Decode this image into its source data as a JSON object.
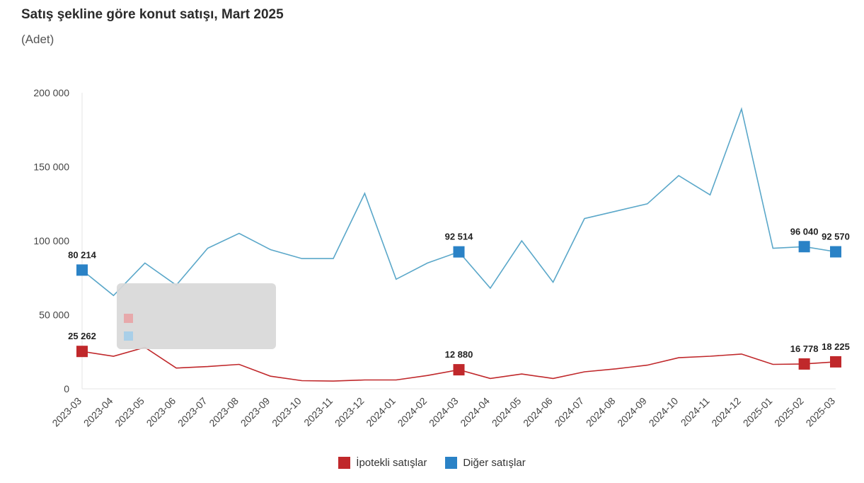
{
  "title": "Satış şekline göre konut satışı, Mart 2025",
  "subtitle": "(Adet)",
  "colors": {
    "ipotekli": "#c0282b",
    "diger": "#2a82c6",
    "diger_line": "#5aa7c9"
  },
  "chart_data": {
    "type": "line",
    "title": "Satış şekline göre konut satışı, Mart 2025",
    "subtitle": "(Adet)",
    "xlabel": "",
    "ylabel": "",
    "ylim": [
      0,
      200000
    ],
    "y_ticks": [
      "0",
      "50 000",
      "100 000",
      "150 000",
      "200 000"
    ],
    "categories": [
      "2023-03",
      "2023-04",
      "2023-05",
      "2023-06",
      "2023-07",
      "2023-08",
      "2023-09",
      "2023-10",
      "2023-11",
      "2023-12",
      "2024-01",
      "2024-02",
      "2024-03",
      "2024-04",
      "2024-05",
      "2024-06",
      "2024-07",
      "2024-08",
      "2024-09",
      "2024-10",
      "2024-11",
      "2024-12",
      "2025-01",
      "2025-02",
      "2025-03"
    ],
    "series": [
      {
        "name": "İpotekli satışlar",
        "values": [
          25262,
          22000,
          28000,
          14000,
          15000,
          16500,
          8500,
          5500,
          5200,
          6000,
          6000,
          9000,
          12880,
          7000,
          10000,
          7000,
          11500,
          13500,
          16000,
          21000,
          22000,
          23500,
          16500,
          16778,
          18225
        ]
      },
      {
        "name": "Diğer satışlar",
        "values": [
          80214,
          63000,
          85000,
          70000,
          95000,
          105000,
          94000,
          88000,
          88000,
          132000,
          74000,
          85000,
          92514,
          68000,
          100000,
          72000,
          115000,
          120000,
          125000,
          144000,
          131000,
          189000,
          95000,
          96040,
          92570
        ]
      }
    ],
    "data_labels": [
      {
        "series": 1,
        "index": 0,
        "text": "80 214"
      },
      {
        "series": 1,
        "index": 12,
        "text": "92 514"
      },
      {
        "series": 1,
        "index": 23,
        "text": "96 040"
      },
      {
        "series": 1,
        "index": 24,
        "text": "92 570"
      },
      {
        "series": 0,
        "index": 0,
        "text": "25 262"
      },
      {
        "series": 0,
        "index": 12,
        "text": "12 880"
      },
      {
        "series": 0,
        "index": 23,
        "text": "16 778"
      },
      {
        "series": 0,
        "index": 24,
        "text": "18 225"
      }
    ],
    "legend": "bottom",
    "grid": false
  }
}
